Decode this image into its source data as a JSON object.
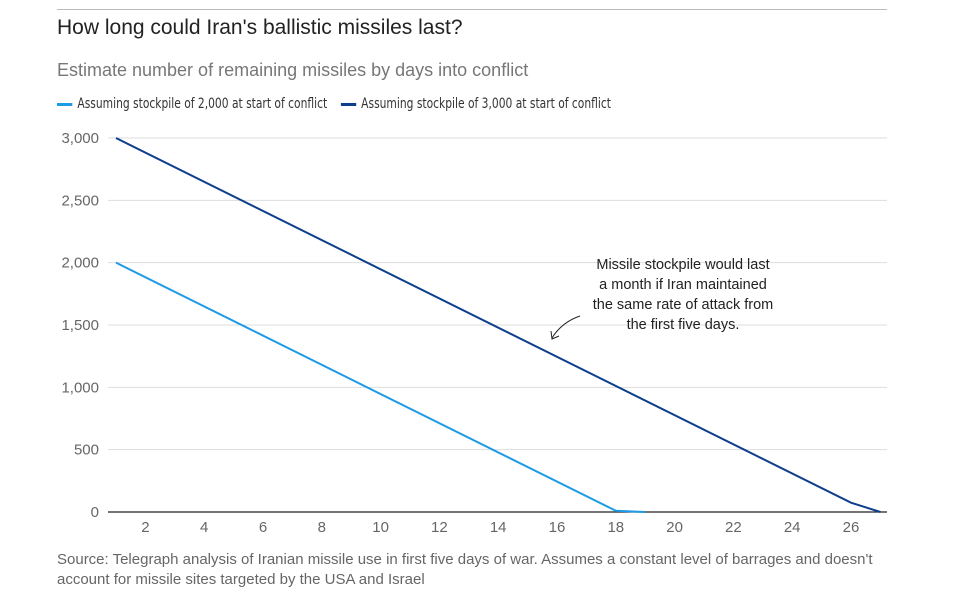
{
  "chart_data": {
    "type": "line",
    "title": "How long could Iran's ballistic missiles last?",
    "subtitle": "Estimate number of remaining missiles by days into conflict",
    "xlabel": "",
    "ylabel": "",
    "xlim": [
      1,
      27
    ],
    "ylim": [
      0,
      3000
    ],
    "x_ticks": [
      2,
      4,
      6,
      8,
      10,
      12,
      14,
      16,
      18,
      20,
      22,
      24,
      26
    ],
    "y_ticks": [
      0,
      500,
      1000,
      1500,
      2000,
      2500,
      3000
    ],
    "y_tick_labels": [
      "0",
      "500",
      "1,000",
      "1,500",
      "2,000",
      "2,500",
      "3,000"
    ],
    "grid": "horizontal",
    "legend_placement": "top-left",
    "series": [
      {
        "name": "Assuming stockpile of 2,000 at start of conflict",
        "color": "#1e9be6",
        "points": [
          [
            1,
            2000
          ],
          [
            18,
            10
          ],
          [
            19,
            0
          ]
        ]
      },
      {
        "name": "Assuming stockpile of 3,000 at start of conflict",
        "color": "#0d3f8c",
        "points": [
          [
            1,
            3000
          ],
          [
            26,
            75
          ],
          [
            27,
            0
          ]
        ]
      }
    ],
    "annotation": {
      "lines": [
        "Missile stockpile would last",
        "a month if Iran maintained",
        "the same rate of attack from",
        "the first five days."
      ],
      "x": 15.5,
      "y": 1400
    },
    "source": "Source: Telegraph analysis of Iranian missile use in first five days of war. Assumes a constant level of barrages and doesn't account for missile sites targeted by the USA and Israel"
  }
}
